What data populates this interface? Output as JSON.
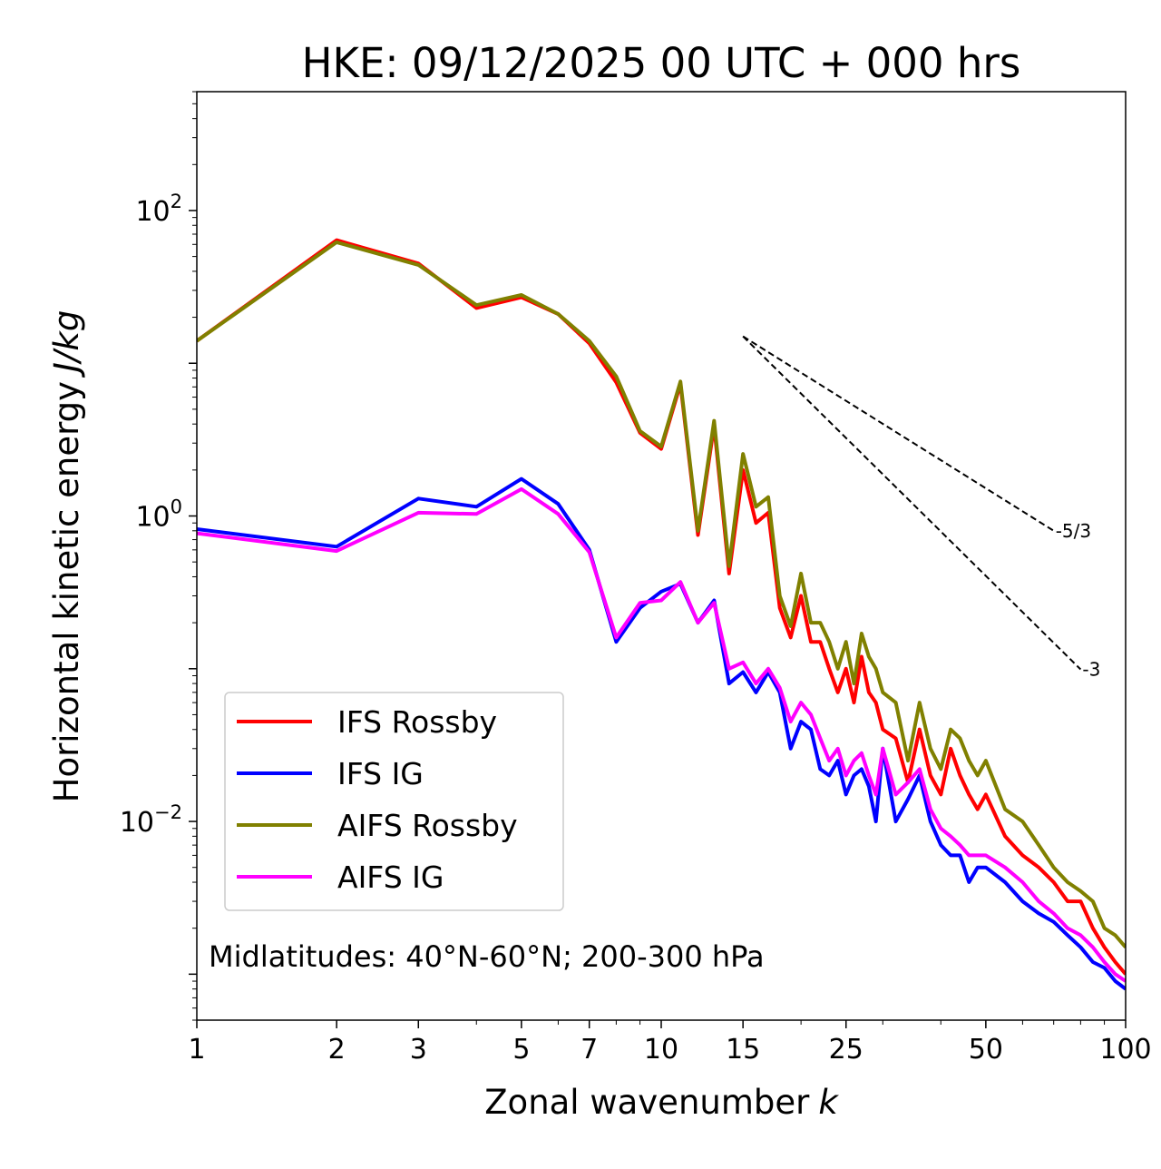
{
  "chart_data": {
    "type": "line",
    "title": "HKE: 09/12/2025 00 UTC + 000 hrs",
    "xlabel": "Zonal wavenumber",
    "xlabel_var": "k",
    "ylabel": "Horizontal kinetic energy",
    "ylabel_units": "J/kg",
    "xscale": "log",
    "yscale": "log",
    "xlim": [
      1,
      100
    ],
    "ylim": [
      0.0005,
      600
    ],
    "x_ticks": [
      1,
      2,
      3,
      5,
      7,
      10,
      15,
      25,
      50,
      100
    ],
    "x_tick_labels": [
      "1",
      "2",
      "3",
      "5",
      "7",
      "10",
      "15",
      "25",
      "50",
      "100"
    ],
    "y_ticks": [
      0.01,
      1,
      100
    ],
    "y_tick_labels": [
      {
        "base": "10",
        "exp": "−2"
      },
      {
        "base": "10",
        "exp": "0"
      },
      {
        "base": "10",
        "exp": "2"
      }
    ],
    "annotation": "Midlatitudes: 40°N-60°N; 200-300 hPa",
    "legend_position": "lower-left",
    "reference_lines": [
      {
        "label": "-5/3",
        "slope": -1.6667,
        "x": [
          15,
          70
        ],
        "y": [
          15,
          0.8
        ]
      },
      {
        "label": "-3",
        "slope": -3,
        "x": [
          15,
          80
        ],
        "y": [
          15,
          0.099
        ]
      }
    ],
    "series": [
      {
        "name": "IFS Rossby",
        "color": "#ff0000",
        "x": [
          1,
          2,
          3,
          4,
          5,
          6,
          7,
          8,
          9,
          10,
          11,
          12,
          13,
          14,
          15,
          16,
          17,
          18,
          19,
          20,
          21,
          22,
          23,
          24,
          25,
          26,
          27,
          28,
          29,
          30,
          32,
          34,
          36,
          38,
          40,
          42,
          44,
          46,
          48,
          50,
          55,
          60,
          65,
          70,
          75,
          80,
          85,
          90,
          95,
          100
        ],
        "values": [
          14,
          64,
          45,
          23,
          27,
          21,
          13.5,
          7.5,
          3.5,
          2.75,
          7.3,
          0.75,
          3.9,
          0.42,
          2.0,
          0.9,
          1.05,
          0.25,
          0.16,
          0.3,
          0.15,
          0.15,
          0.1,
          0.07,
          0.1,
          0.06,
          0.12,
          0.07,
          0.06,
          0.04,
          0.035,
          0.018,
          0.04,
          0.02,
          0.015,
          0.03,
          0.02,
          0.015,
          0.012,
          0.015,
          0.008,
          0.006,
          0.005,
          0.004,
          0.003,
          0.003,
          0.002,
          0.0015,
          0.0012,
          0.001
        ]
      },
      {
        "name": "IFS IG",
        "color": "#0000ff",
        "x": [
          1,
          2,
          3,
          4,
          5,
          6,
          7,
          8,
          9,
          10,
          11,
          12,
          13,
          14,
          15,
          16,
          17,
          18,
          19,
          20,
          21,
          22,
          23,
          24,
          25,
          26,
          27,
          28,
          29,
          30,
          32,
          34,
          36,
          38,
          40,
          42,
          44,
          46,
          48,
          50,
          55,
          60,
          65,
          70,
          75,
          80,
          85,
          90,
          95,
          100
        ],
        "values": [
          0.82,
          0.63,
          1.3,
          1.15,
          1.75,
          1.2,
          0.6,
          0.15,
          0.25,
          0.32,
          0.36,
          0.2,
          0.28,
          0.08,
          0.095,
          0.07,
          0.095,
          0.07,
          0.03,
          0.045,
          0.04,
          0.022,
          0.02,
          0.025,
          0.015,
          0.02,
          0.022,
          0.017,
          0.01,
          0.03,
          0.01,
          0.014,
          0.02,
          0.01,
          0.007,
          0.006,
          0.006,
          0.004,
          0.005,
          0.005,
          0.004,
          0.003,
          0.0025,
          0.0022,
          0.0018,
          0.0015,
          0.0012,
          0.0011,
          0.0009,
          0.0008
        ]
      },
      {
        "name": "AIFS Rossby",
        "color": "#808000",
        "x": [
          1,
          2,
          3,
          4,
          5,
          6,
          7,
          8,
          9,
          10,
          11,
          12,
          13,
          14,
          15,
          16,
          17,
          18,
          19,
          20,
          21,
          22,
          23,
          24,
          25,
          26,
          27,
          28,
          29,
          30,
          32,
          34,
          36,
          38,
          40,
          42,
          44,
          46,
          48,
          50,
          55,
          60,
          65,
          70,
          75,
          80,
          85,
          90,
          95,
          100
        ],
        "values": [
          14,
          62,
          44,
          24,
          28,
          21,
          14,
          8.2,
          3.6,
          2.85,
          7.6,
          0.8,
          4.2,
          0.47,
          2.55,
          1.15,
          1.33,
          0.3,
          0.19,
          0.42,
          0.2,
          0.2,
          0.15,
          0.1,
          0.15,
          0.08,
          0.17,
          0.12,
          0.1,
          0.07,
          0.06,
          0.025,
          0.06,
          0.03,
          0.022,
          0.04,
          0.035,
          0.025,
          0.02,
          0.025,
          0.012,
          0.01,
          0.007,
          0.005,
          0.004,
          0.0035,
          0.003,
          0.002,
          0.0018,
          0.0015
        ]
      },
      {
        "name": "AIFS IG",
        "color": "#ff00ff",
        "x": [
          1,
          2,
          3,
          4,
          5,
          6,
          7,
          8,
          9,
          10,
          11,
          12,
          13,
          14,
          15,
          16,
          17,
          18,
          19,
          20,
          21,
          22,
          23,
          24,
          25,
          26,
          27,
          28,
          29,
          30,
          32,
          34,
          36,
          38,
          40,
          42,
          44,
          46,
          48,
          50,
          55,
          60,
          65,
          70,
          75,
          80,
          85,
          90,
          95,
          100
        ],
        "values": [
          0.77,
          0.59,
          1.05,
          1.03,
          1.5,
          1.03,
          0.58,
          0.16,
          0.27,
          0.28,
          0.37,
          0.2,
          0.27,
          0.1,
          0.11,
          0.08,
          0.1,
          0.075,
          0.045,
          0.06,
          0.05,
          0.035,
          0.025,
          0.03,
          0.02,
          0.025,
          0.028,
          0.02,
          0.015,
          0.03,
          0.015,
          0.018,
          0.022,
          0.012,
          0.009,
          0.008,
          0.007,
          0.006,
          0.006,
          0.006,
          0.005,
          0.004,
          0.003,
          0.0025,
          0.002,
          0.0018,
          0.0015,
          0.0012,
          0.001,
          0.0009
        ]
      }
    ]
  }
}
